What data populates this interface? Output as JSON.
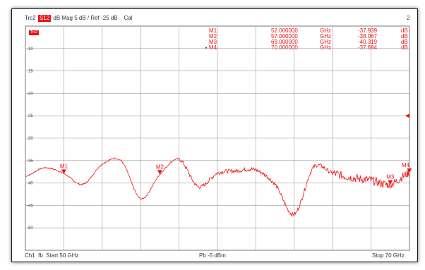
{
  "header": {
    "trace": "Trc2",
    "parameter": "S12",
    "format": "dB Mag",
    "scale": "5 dB /",
    "reference": "Ref -25 dB",
    "calibration": "Cal",
    "channel_index": "2"
  },
  "trace_tag": "Trc2",
  "markers": [
    {
      "name": "M1",
      "freq": "52.000000",
      "freq_unit": "GHz",
      "value": "-37.939",
      "value_unit": "dB"
    },
    {
      "name": "M2",
      "freq": "57.000000",
      "freq_unit": "GHz",
      "value": "-38.067",
      "value_unit": "dB"
    },
    {
      "name": "M3",
      "freq": "69.000000",
      "freq_unit": "GHz",
      "value": "-40.319",
      "value_unit": "dB"
    },
    {
      "name": "M4",
      "freq": "70.000000",
      "freq_unit": "GHz",
      "value": "-37.684",
      "value_unit": "dB"
    }
  ],
  "footer": {
    "channel": "Ch1",
    "sweep": "fb",
    "start": "Start  50 GHz",
    "power": "Pb  -5 dBm",
    "stop": "Stop  70 GHz"
  },
  "chart_data": {
    "type": "line",
    "x_unit": "GHz",
    "y_unit": "dB",
    "xlim": [
      50,
      70
    ],
    "ylim": [
      -55,
      -5
    ],
    "yticks": [
      -10,
      -15,
      -20,
      -25,
      -30,
      -35,
      -40,
      -45,
      -50
    ],
    "ytick_labels": [
      "-10",
      "-15",
      "-20",
      "-25",
      "-30",
      "-35",
      "-40",
      "-45",
      "-50"
    ],
    "reference_level": -25,
    "grid": true,
    "series": [
      {
        "x": [
          50,
          51,
          52,
          53,
          54,
          55,
          56,
          57,
          58,
          59,
          60,
          61,
          62,
          63,
          64,
          65,
          66,
          67,
          68,
          69,
          70
        ],
        "y": [
          -38.5,
          -36.6,
          -37.9,
          -40.3,
          -35.8,
          -35.1,
          -43.5,
          -38.1,
          -34.7,
          -40.8,
          -37.8,
          -37.3,
          -37.1,
          -40.3,
          -47,
          -36.5,
          -37.8,
          -38.8,
          -39.4,
          -40.3,
          -37.7
        ]
      }
    ]
  }
}
